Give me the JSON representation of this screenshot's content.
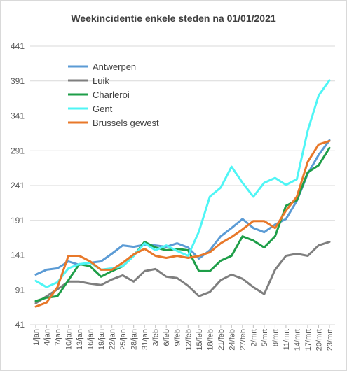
{
  "chart_data": {
    "type": "line",
    "title": "Weekincidentie  enkele steden na 01/01/2021",
    "xlabel": "",
    "ylabel": "",
    "ylim": [
      41,
      441
    ],
    "yticks": [
      41,
      91,
      141,
      191,
      241,
      291,
      341,
      391,
      441
    ],
    "grid": true,
    "legend_position": "top-left",
    "categories": [
      "1/jan",
      "4/jan",
      "7/jan",
      "10/jan",
      "13/jan",
      "16/jan",
      "19/jan",
      "22/jan",
      "25/jan",
      "28/jan",
      "31/jan",
      "3/feb",
      "6/feb",
      "9/feb",
      "12/feb",
      "15/feb",
      "18/feb",
      "21/feb",
      "24/feb",
      "27/feb",
      "2/mrt",
      "5/mrt",
      "8/mrt",
      "11/mrt",
      "14/mrt",
      "17/mrt",
      "20/mrt",
      "23/mrt"
    ],
    "series": [
      {
        "name": "Antwerpen",
        "color": "#5b9bd5",
        "values": [
          113,
          120,
          122,
          132,
          127,
          130,
          132,
          143,
          155,
          153,
          156,
          155,
          153,
          158,
          152,
          136,
          148,
          168,
          180,
          193,
          180,
          174,
          185,
          193,
          219,
          258,
          285,
          306
        ]
      },
      {
        "name": "Luik",
        "color": "#7f7f7f",
        "values": [
          72,
          82,
          92,
          103,
          103,
          100,
          98,
          106,
          112,
          103,
          118,
          121,
          110,
          108,
          97,
          82,
          88,
          105,
          113,
          107,
          95,
          85,
          120,
          140,
          143,
          140,
          155,
          160
        ]
      },
      {
        "name": "Charleroi",
        "color": "#1e9e48",
        "values": [
          75,
          80,
          82,
          105,
          128,
          125,
          110,
          118,
          125,
          140,
          160,
          152,
          148,
          150,
          148,
          118,
          118,
          133,
          140,
          168,
          162,
          152,
          168,
          212,
          220,
          260,
          270,
          295
        ]
      },
      {
        "name": "Gent",
        "color": "#4ff5f5",
        "values": [
          104,
          95,
          102,
          122,
          128,
          130,
          120,
          122,
          125,
          140,
          158,
          148,
          155,
          147,
          140,
          175,
          225,
          238,
          268,
          245,
          225,
          245,
          252,
          242,
          250,
          320,
          370,
          392
        ]
      },
      {
        "name": "Brussels gewest",
        "color": "#e8782a",
        "values": [
          67,
          73,
          95,
          140,
          140,
          132,
          120,
          120,
          130,
          142,
          150,
          140,
          137,
          140,
          137,
          140,
          145,
          158,
          167,
          178,
          190,
          190,
          180,
          205,
          225,
          275,
          300,
          305
        ]
      }
    ]
  }
}
